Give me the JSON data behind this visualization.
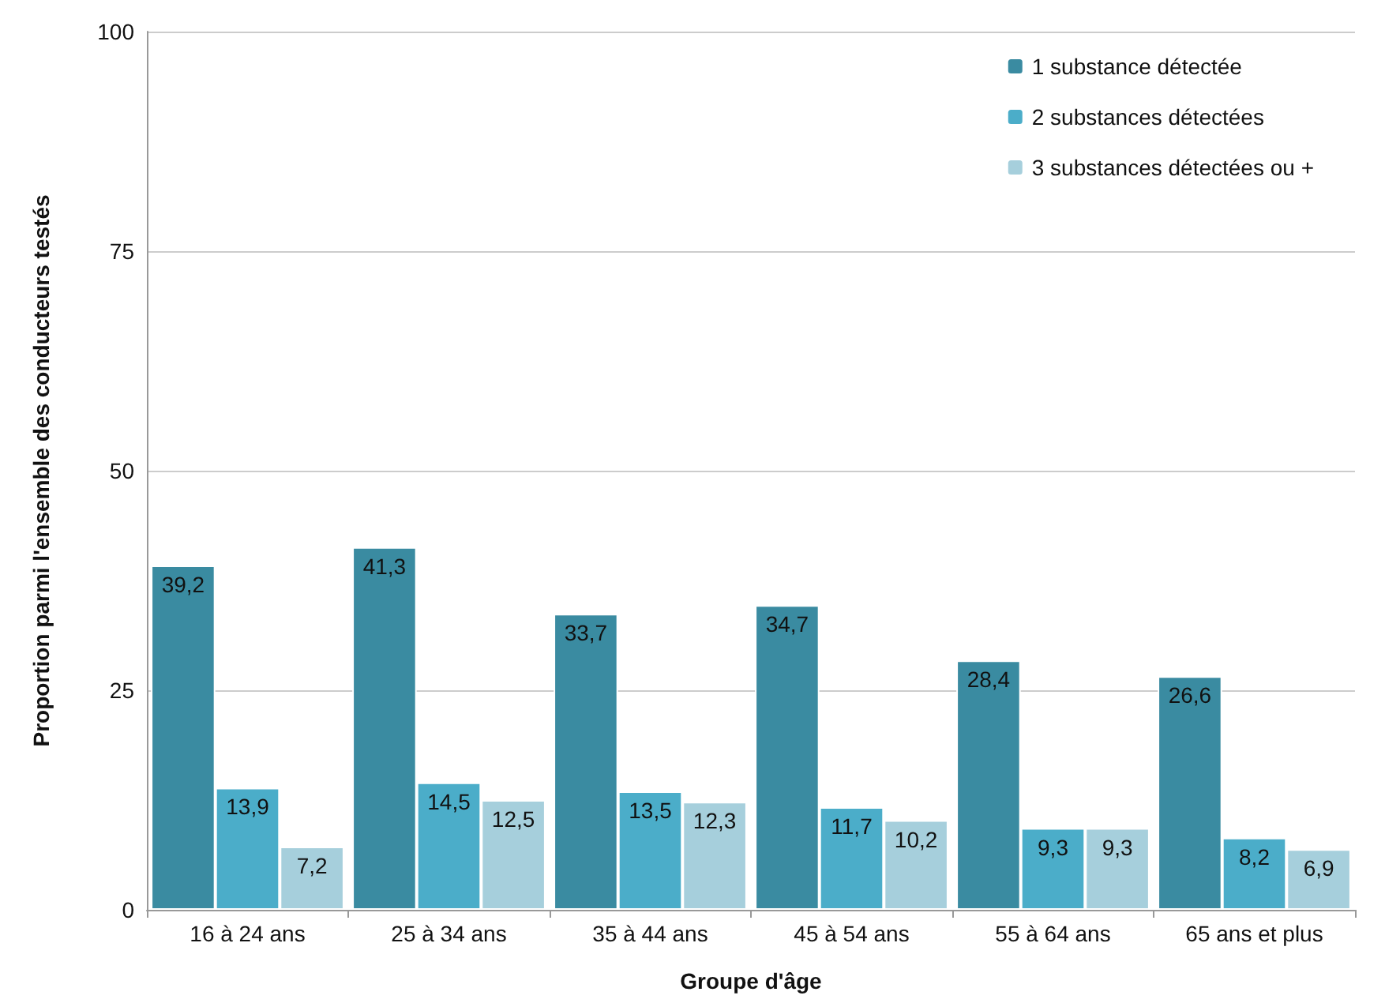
{
  "chart_data": {
    "type": "bar",
    "xlabel": "Groupe d'âge",
    "ylabel": "Proportion parmi l'ensemble des conducteurs testés",
    "categories": [
      "16 à 24 ans",
      "25 à 34 ans",
      "35 à 44 ans",
      "45 à 54 ans",
      "55 à 64 ans",
      "65 ans et plus"
    ],
    "series": [
      {
        "name": "1 substance détectée",
        "color": "#3a8ba1",
        "values": [
          39.2,
          41.3,
          33.7,
          34.7,
          28.4,
          26.6
        ],
        "value_labels": [
          "39,2",
          "41,3",
          "33,7",
          "34,7",
          "28,4",
          "26,6"
        ]
      },
      {
        "name": "2 substances détectées",
        "color": "#4badc9",
        "values": [
          13.9,
          14.5,
          13.5,
          11.7,
          9.3,
          8.2
        ],
        "value_labels": [
          "13,9",
          "14,5",
          "13,5",
          "11,7",
          "9,3",
          "8,2"
        ]
      },
      {
        "name": "3 substances détectées ou +",
        "color": "#a6cfdc",
        "values": [
          7.2,
          12.5,
          12.3,
          10.2,
          9.3,
          6.9
        ],
        "value_labels": [
          "7,2",
          "12,5",
          "12,3",
          "10,2",
          "9,3",
          "6,9"
        ]
      }
    ],
    "ylim": [
      0,
      100
    ],
    "yticks": [
      0,
      25,
      50,
      75,
      100
    ],
    "grid": "y",
    "legend": "top right"
  }
}
